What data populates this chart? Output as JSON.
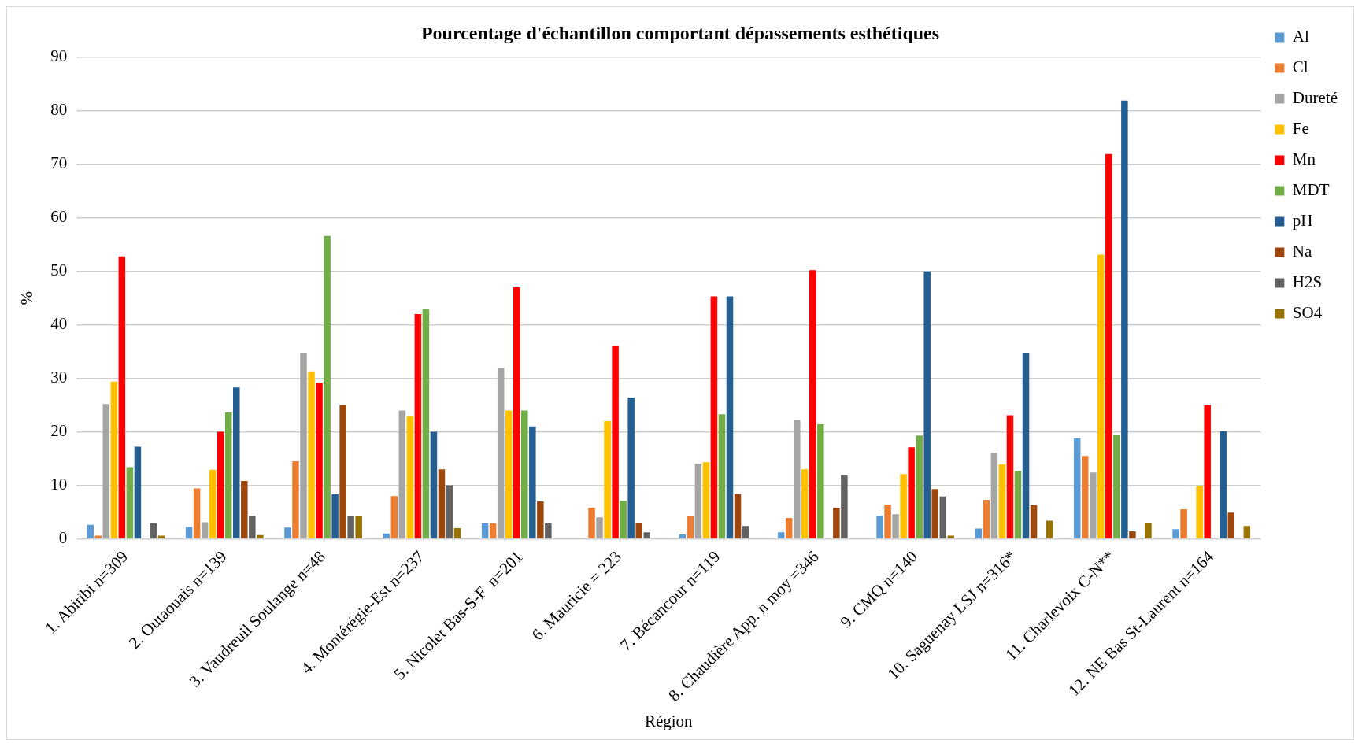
{
  "chart_data": {
    "type": "bar",
    "title": "Pourcentage d'échantillon comportant dépassements esthétiques",
    "xlabel": "Région",
    "ylabel": "%",
    "categories": [
      "1. Abitibi n=309",
      "2. Outaouais n=139",
      "3. Vaudreuil Soulange n=48",
      "4. Montérégie-Est n=237",
      "5. Nicolet Bas-S-F  n=201",
      "6. Mauricie = 223",
      "7. Bécancour n=119",
      "8. Chaudière App. n moy =346",
      "9. CMQ n=140",
      "10. Saguenay LSJ n=316*",
      "11. Charlevoix C-N**",
      "12. NE Bas St-Laurent n=164"
    ],
    "series": [
      {
        "name": "Al",
        "color": "#5b9bd5",
        "values": [
          2.6,
          2.2,
          2.1,
          1.0,
          2.9,
          null,
          0.8,
          1.2,
          4.3,
          1.9,
          18.8,
          1.8
        ]
      },
      {
        "name": "Cl",
        "color": "#ed7d31",
        "values": [
          0.6,
          9.4,
          14.5,
          8.0,
          2.9,
          5.8,
          4.2,
          3.9,
          6.4,
          7.3,
          15.5,
          5.5
        ]
      },
      {
        "name": "Dureté",
        "color": "#a5a5a5",
        "values": [
          25.2,
          3.1,
          34.8,
          24,
          32,
          4,
          14,
          22.2,
          4.6,
          16.1,
          12.4,
          null
        ]
      },
      {
        "name": "Fe",
        "color": "#ffc000",
        "values": [
          29.4,
          12.9,
          31.3,
          23,
          24,
          22,
          14.3,
          13,
          12.1,
          13.9,
          53.1,
          9.8
        ]
      },
      {
        "name": "Mn",
        "color": "#ff0000",
        "values": [
          52.8,
          20,
          29.2,
          42,
          47,
          36,
          45.3,
          50.2,
          17.1,
          23.1,
          71.9,
          25
        ]
      },
      {
        "name": "MDT",
        "color": "#70ad47",
        "values": [
          13.4,
          23.6,
          56.6,
          43,
          24,
          7.1,
          23.3,
          21.4,
          19.3,
          12.7,
          19.5,
          null
        ]
      },
      {
        "name": "pH",
        "color": "#255e91",
        "values": [
          17.2,
          28.3,
          8.3,
          20,
          21,
          26.4,
          45.3,
          null,
          50,
          34.8,
          81.9,
          20.1
        ]
      },
      {
        "name": "Na",
        "color": "#9e480e",
        "values": [
          null,
          10.8,
          25,
          13,
          7,
          3,
          8.4,
          5.8,
          9.3,
          6.3,
          1.4,
          4.9
        ]
      },
      {
        "name": "H2S",
        "color": "#636363",
        "values": [
          2.9,
          4.3,
          4.2,
          10,
          2.9,
          1.2,
          2.4,
          11.9,
          7.9,
          null,
          null,
          null
        ]
      },
      {
        "name": "SO4",
        "color": "#997300",
        "values": [
          0.6,
          0.7,
          4.2,
          2,
          null,
          null,
          null,
          null,
          0.6,
          3.4,
          3.0,
          2.4
        ]
      }
    ],
    "ylim": [
      0,
      90
    ],
    "yticks": [
      0,
      10,
      20,
      30,
      40,
      50,
      60,
      70,
      80,
      90
    ],
    "grid": "y",
    "legend": "right"
  }
}
